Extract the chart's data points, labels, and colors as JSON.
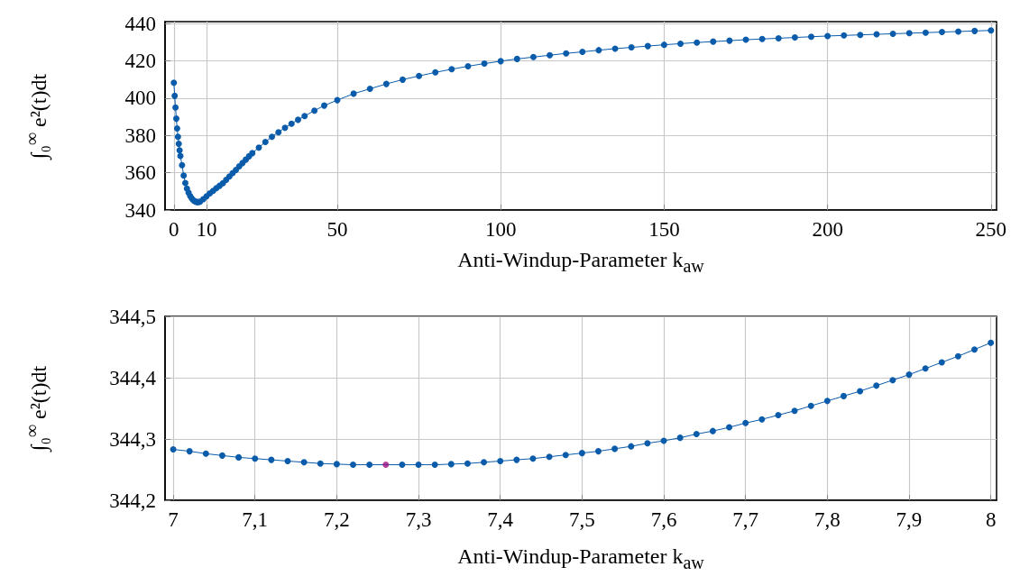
{
  "chart_data": [
    {
      "type": "line",
      "xlabel": "Anti-Windup-Parameter k$_{aw}$",
      "ylabel": "∫₀$^{∞}$ e²(t)dt",
      "marker": "circle",
      "line_style": "solid",
      "grid": true,
      "xlim": [
        -2.7,
        251.7
      ],
      "xticks": [
        0,
        10,
        50,
        100,
        150,
        200,
        250
      ],
      "ylim": [
        340,
        441
      ],
      "yticks": [
        340,
        360,
        380,
        400,
        420,
        440
      ],
      "series": [
        {
          "color": "#0a5cab",
          "x": [
            0,
            0.25,
            0.5,
            0.75,
            1,
            1.25,
            1.5,
            1.75,
            2,
            2.5,
            3,
            3.5,
            4,
            4.5,
            5,
            5.5,
            6,
            6.5,
            7,
            7.5,
            8,
            9,
            10,
            11,
            12,
            13,
            14,
            15,
            16,
            17,
            18,
            19,
            20,
            21,
            22,
            23,
            24,
            26,
            28,
            30,
            32,
            34,
            36,
            38,
            40,
            43,
            46,
            50,
            55,
            60,
            65,
            70,
            75,
            80,
            85,
            90,
            95,
            100,
            105,
            110,
            115,
            120,
            125,
            130,
            135,
            140,
            145,
            150,
            155,
            160,
            165,
            170,
            175,
            180,
            185,
            190,
            195,
            200,
            205,
            210,
            215,
            220,
            225,
            230,
            235,
            240,
            245,
            250
          ],
          "values": [
            408.3,
            401.2,
            395,
            389,
            383.7,
            379.3,
            375.5,
            372,
            369,
            364,
            358.5,
            354.5,
            351.5,
            349.3,
            347.5,
            346.2,
            345.2,
            344.6,
            344.3,
            344.3,
            344.5,
            345.8,
            347.4,
            348.9,
            350.3,
            351.7,
            353,
            354.4,
            356.2,
            358,
            359.8,
            361.5,
            363.4,
            365.2,
            367,
            368.8,
            370.5,
            373.5,
            376.5,
            379.3,
            381.7,
            384.1,
            386.3,
            388.4,
            390.4,
            393.3,
            396,
            398.9,
            402.4,
            405,
            407.6,
            409.9,
            411.9,
            413.8,
            415.5,
            417.1,
            418.5,
            419.8,
            421,
            422,
            423,
            424,
            424.8,
            425.7,
            426.5,
            427.2,
            427.9,
            428.6,
            429.2,
            429.8,
            430.3,
            430.8,
            431.3,
            431.7,
            432.1,
            432.5,
            432.9,
            433.3,
            433.6,
            433.9,
            434.2,
            434.5,
            434.8,
            435.1,
            435.4,
            435.7,
            436,
            436.3
          ]
        }
      ]
    },
    {
      "type": "line",
      "xlabel": "Anti-Windup-Parameter k$_{aw}$",
      "ylabel": "∫₀$^{∞}$ e²(t)dt",
      "marker": "circle",
      "line_style": "solid",
      "grid": true,
      "xlim": [
        6.99,
        8.007
      ],
      "xticks": [
        {
          "value": 7,
          "label": "7"
        },
        {
          "value": 7.1,
          "label": "7,1"
        },
        {
          "value": 7.2,
          "label": "7,2"
        },
        {
          "value": 7.3,
          "label": "7,3"
        },
        {
          "value": 7.4,
          "label": "7,4"
        },
        {
          "value": 7.5,
          "label": "7,5"
        },
        {
          "value": 7.6,
          "label": "7,6"
        },
        {
          "value": 7.7,
          "label": "7,7"
        },
        {
          "value": 7.8,
          "label": "7,8"
        },
        {
          "value": 7.9,
          "label": "7,9"
        },
        {
          "value": 8,
          "label": "8"
        }
      ],
      "ylim": [
        344.2,
        344.5
      ],
      "yticks": [
        {
          "value": 344.2,
          "label": "344,2"
        },
        {
          "value": 344.3,
          "label": "344,3"
        },
        {
          "value": 344.4,
          "label": "344,4"
        },
        {
          "value": 344.5,
          "label": "344,5"
        }
      ],
      "series": [
        {
          "color": "#0a5cab",
          "x": [
            7,
            7.02,
            7.04,
            7.06,
            7.08,
            7.1,
            7.12,
            7.14,
            7.16,
            7.18,
            7.2,
            7.22,
            7.24,
            7.28,
            7.3,
            7.32,
            7.34,
            7.36,
            7.38,
            7.4,
            7.42,
            7.44,
            7.46,
            7.48,
            7.5,
            7.52,
            7.54,
            7.56,
            7.58,
            7.6,
            7.62,
            7.64,
            7.66,
            7.68,
            7.7,
            7.72,
            7.74,
            7.76,
            7.78,
            7.8,
            7.82,
            7.84,
            7.86,
            7.88,
            7.9,
            7.92,
            7.94,
            7.96,
            7.98,
            8
          ],
          "values": [
            344.283,
            344.28,
            344.276,
            344.273,
            344.27,
            344.268,
            344.266,
            344.264,
            344.262,
            344.26,
            344.259,
            344.258,
            344.258,
            344.258,
            344.258,
            344.258,
            344.259,
            344.26,
            344.262,
            344.264,
            344.266,
            344.268,
            344.271,
            344.274,
            344.277,
            344.28,
            344.284,
            344.288,
            344.293,
            344.297,
            344.302,
            344.308,
            344.313,
            344.319,
            344.326,
            344.332,
            344.339,
            344.346,
            344.354,
            344.362,
            344.37,
            344.378,
            344.387,
            344.396,
            344.405,
            344.415,
            344.425,
            344.435,
            344.446,
            344.457
          ]
        },
        {
          "type": "scatter",
          "color": "#9c1282",
          "x": [
            7.26
          ],
          "values": [
            344.258
          ]
        }
      ]
    }
  ]
}
